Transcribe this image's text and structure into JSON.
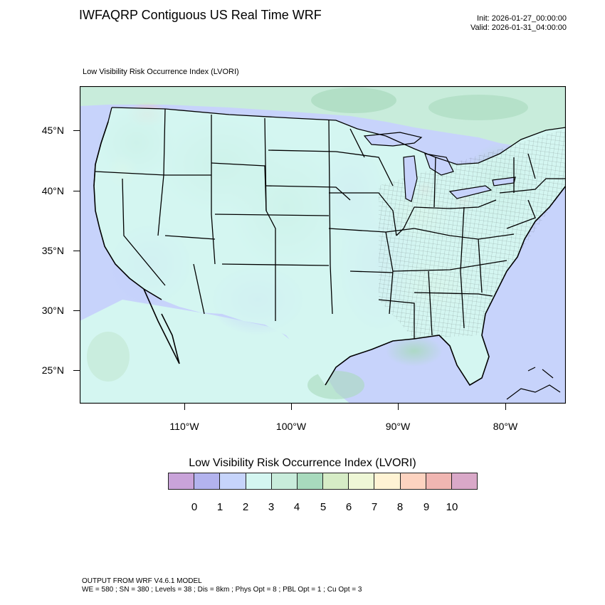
{
  "header": {
    "title": "IWFAQRP Contiguous US Real Time WRF",
    "init": "Init: 2026-01-27_00:00:00",
    "valid": "Valid: 2026-01-31_04:00:00"
  },
  "map": {
    "subtitle": "Low Visibility Risk Occurrence Index   (LVORI)",
    "lat_labels": [
      "45°N",
      "40°N",
      "35°N",
      "30°N",
      "25°N"
    ],
    "lon_labels": [
      "110°W",
      "100°W",
      "90°W",
      "80°W"
    ]
  },
  "legend": {
    "title": "Low Visibility Risk Occurrence Index  (LVORI)",
    "ticks": [
      "0",
      "1",
      "2",
      "3",
      "4",
      "5",
      "6",
      "7",
      "8",
      "9",
      "10"
    ],
    "colors": [
      "#c9a3d9",
      "#b3b3ee",
      "#c6d4fb",
      "#d4f6f1",
      "#c8ecdb",
      "#a8dabd",
      "#d6ecc6",
      "#eef7d6",
      "#fff3d4",
      "#fdd3c0",
      "#f0b6b2",
      "#d9a8c8"
    ]
  },
  "footer": {
    "line1": "OUTPUT FROM WRF V4.6.1 MODEL",
    "line2": "WE = 580 ; SN = 380 ; Levels = 38 ; Dis = 8km ; Phys Opt = 8 ; PBL Opt = 1 ; Cu Opt = 3"
  }
}
